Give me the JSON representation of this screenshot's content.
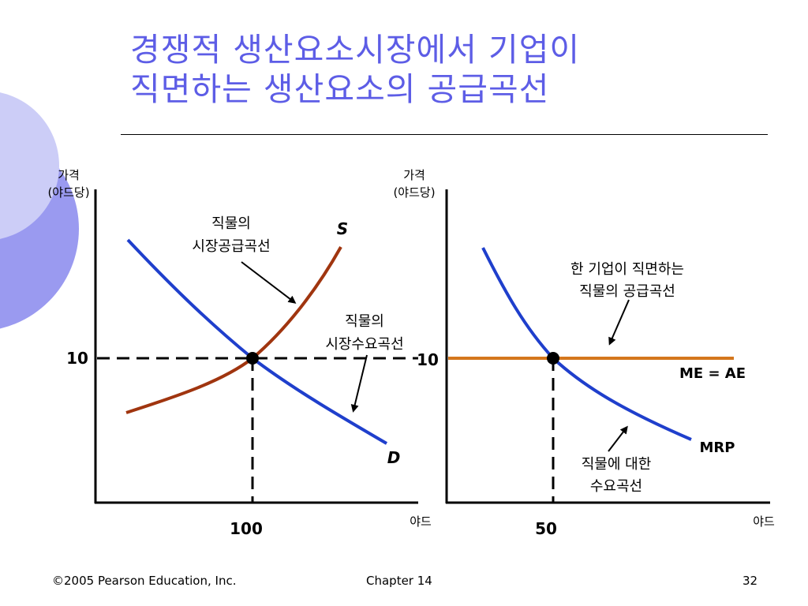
{
  "slide": {
    "title_line1": "경쟁적 생산요소시장에서 기업이",
    "title_line2": "직면하는 생산요소의 공급곡선",
    "title_color": "#5d5de6",
    "footer": {
      "copyright": "©2005 Pearson Education, Inc.",
      "chapter": "Chapter 14",
      "page": "32"
    }
  },
  "chart_data": [
    {
      "type": "line",
      "title": "",
      "ylabel_line1": "가격",
      "ylabel_line2": "(야드당)",
      "xlabel": "야드",
      "x_tick_label": "100",
      "y_tick_label": "10",
      "equilibrium": {
        "x": 100,
        "y": 10
      },
      "series": [
        {
          "name": "S",
          "color": "#a0350f",
          "label_style": "bold-italic"
        },
        {
          "name": "D",
          "color": "#1f3fcc",
          "label_style": "bold-italic"
        }
      ],
      "annotations": [
        {
          "text_line1": "직물의",
          "text_line2": "시장공급곡선",
          "target": "S"
        },
        {
          "text_line1": "직물의",
          "text_line2": "시장수요곡선",
          "target": "D"
        }
      ]
    },
    {
      "type": "line",
      "title": "",
      "ylabel_line1": "가격",
      "ylabel_line2": "(야드당)",
      "xlabel": "야드",
      "x_tick_label": "50",
      "y_tick_label": "10",
      "equilibrium": {
        "x": 50,
        "y": 10
      },
      "series": [
        {
          "name": "ME = AE",
          "color": "#d4761c",
          "value": 10,
          "label_style": "bold"
        },
        {
          "name": "MRP",
          "color": "#1f3fcc",
          "label_style": "bold"
        }
      ],
      "annotations": [
        {
          "text_line1": "한 기업이 직면하는",
          "text_line2": "직물의 공급곡선",
          "target": "ME = AE"
        },
        {
          "text_line1": "직물에 대한",
          "text_line2": "수요곡선",
          "target": "MRP"
        }
      ]
    }
  ],
  "colors": {
    "deco_light": "#cccdf7",
    "deco_mid": "#9a9af0",
    "supply": "#a0350f",
    "demand": "#1f3fcc",
    "horizontal_supply": "#d4761c"
  }
}
